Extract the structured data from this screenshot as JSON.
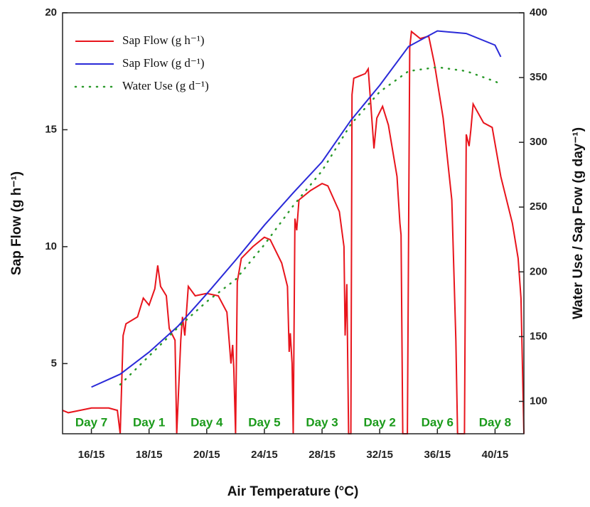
{
  "chart_data": {
    "type": "line",
    "x_label": "Air Temperature (°C)",
    "y_label": "Sap Flow (g h⁻¹)",
    "y2_label": "Water Use / Sap Fow (g day⁻¹)",
    "xlim": [
      0,
      8
    ],
    "xticks": [
      {
        "value": 0.5,
        "label": "16/15"
      },
      {
        "value": 1.5,
        "label": "18/15"
      },
      {
        "value": 2.5,
        "label": "20/15"
      },
      {
        "value": 3.5,
        "label": "24/15"
      },
      {
        "value": 4.5,
        "label": "28/15"
      },
      {
        "value": 5.5,
        "label": "32/15"
      },
      {
        "value": 6.5,
        "label": "36/15"
      },
      {
        "value": 7.5,
        "label": "40/15"
      }
    ],
    "day_labels": [
      "Day 7",
      "Day 1",
      "Day 4",
      "Day 5",
      "Day 3",
      "Day 2",
      "Day 6",
      "Day 8"
    ],
    "ylim": [
      2,
      20
    ],
    "yticks": [
      5,
      10,
      15,
      20
    ],
    "y2lim": [
      75,
      400
    ],
    "y2ticks": [
      100,
      150,
      200,
      250,
      300,
      350,
      400
    ],
    "legend": "upper left",
    "series": [
      {
        "name": "Sap Flow (g h⁻¹)",
        "color": "#e8141c",
        "style": "solid",
        "axis": "y",
        "x": [
          0,
          0.1,
          0.3,
          0.5,
          0.8,
          0.95,
          1.0,
          1.05,
          1.1,
          1.3,
          1.4,
          1.5,
          1.6,
          1.65,
          1.7,
          1.8,
          1.85,
          1.95,
          1.98,
          2.05,
          2.08,
          2.12,
          2.18,
          2.3,
          2.5,
          2.7,
          2.85,
          2.92,
          2.95,
          2.97,
          3.0,
          3.03,
          3.1,
          3.3,
          3.5,
          3.6,
          3.8,
          3.9,
          3.93,
          3.95,
          3.98,
          4.0,
          4.03,
          4.06,
          4.1,
          4.3,
          4.5,
          4.6,
          4.8,
          4.88,
          4.9,
          4.93,
          4.96,
          5.0,
          5.02,
          5.05,
          5.25,
          5.3,
          5.4,
          5.45,
          5.55,
          5.65,
          5.8,
          5.85,
          5.87,
          5.9,
          5.98,
          6.02,
          6.05,
          6.2,
          6.35,
          6.45,
          6.6,
          6.75,
          6.82,
          6.85,
          6.97,
          7.0,
          7.05,
          7.08,
          7.12,
          7.3,
          7.45,
          7.6,
          7.8,
          7.9,
          7.95,
          8.0
        ],
        "values": [
          3.0,
          2.9,
          3.0,
          3.1,
          3.1,
          3.0,
          2.0,
          6.2,
          6.7,
          7.0,
          7.8,
          7.5,
          8.2,
          9.2,
          8.3,
          7.9,
          6.5,
          6.0,
          2.0,
          6.0,
          7.0,
          6.2,
          8.3,
          7.9,
          8.0,
          7.9,
          7.2,
          5.0,
          5.8,
          4.8,
          2.0,
          8.5,
          9.5,
          10.0,
          10.4,
          10.3,
          9.3,
          8.3,
          5.5,
          6.3,
          5.0,
          2.0,
          11.2,
          10.7,
          12.0,
          12.4,
          12.7,
          12.6,
          11.5,
          10.0,
          6.2,
          8.4,
          2.0,
          2.0,
          16.5,
          17.2,
          17.4,
          17.6,
          14.2,
          15.5,
          16.0,
          15.2,
          13.0,
          11.0,
          10.5,
          2.0,
          2.0,
          18.5,
          19.2,
          18.9,
          19.0,
          17.8,
          15.5,
          12.0,
          6.0,
          2.0,
          2.0,
          14.8,
          14.3,
          15.0,
          16.1,
          15.3,
          15.1,
          13.0,
          11.0,
          9.5,
          7.8,
          2.0
        ]
      },
      {
        "name": "Sap Flow (g d⁻¹)",
        "color": "#2a2ad8",
        "style": "solid",
        "axis": "y2",
        "x": [
          0.5,
          1,
          1.5,
          2,
          2.5,
          3,
          3.5,
          4,
          4.5,
          5,
          5.5,
          6,
          6.5,
          7,
          7.5,
          7.6
        ],
        "values": [
          111,
          121,
          138,
          158,
          183,
          209,
          236,
          261,
          285,
          317,
          344,
          374,
          386,
          384,
          375,
          366
        ]
      },
      {
        "name": "Water Use (g d⁻¹)",
        "color": "#2a9a2a",
        "style": "dotted",
        "axis": "y2",
        "x": [
          1,
          1.5,
          2,
          2.5,
          3,
          3.5,
          4,
          4.5,
          5,
          5.5,
          6,
          6.5,
          7,
          7.5,
          7.6
        ],
        "values": [
          113,
          135,
          157,
          177,
          194,
          221,
          251,
          278,
          314,
          339,
          355,
          358,
          355,
          347,
          345
        ]
      }
    ]
  }
}
